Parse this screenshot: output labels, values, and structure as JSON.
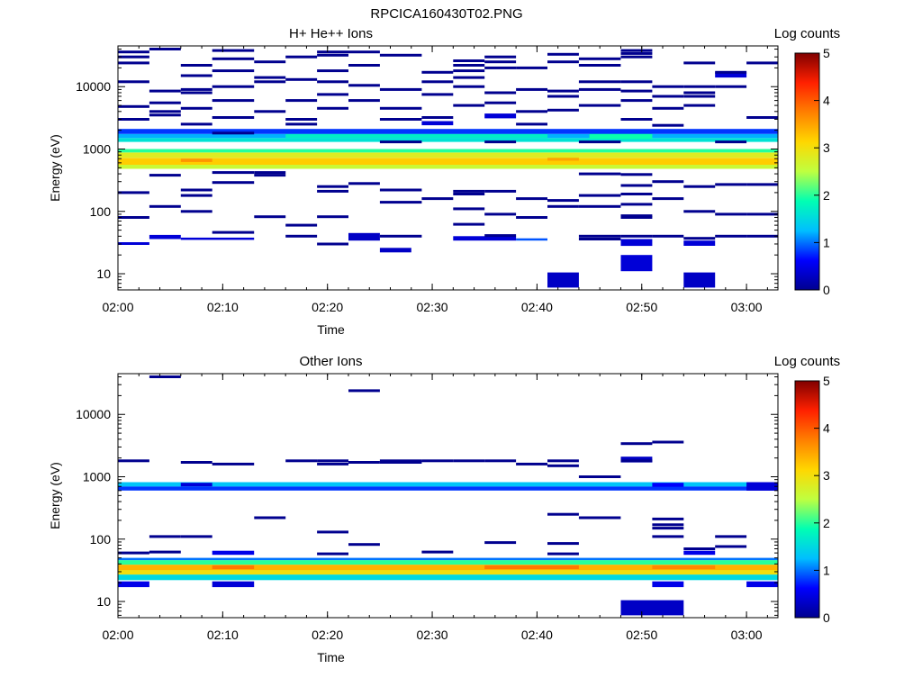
{
  "figure_title": "RPCICA160430T02.PNG",
  "colors": {
    "colormap": [
      "#00008f",
      "#0000ff",
      "#00bfff",
      "#00ffb3",
      "#bfff40",
      "#ffd700",
      "#ff8000",
      "#ff2000",
      "#800000"
    ],
    "axes": "#000000",
    "background": "#ffffff"
  },
  "chart_data": [
    {
      "type": "heatmap",
      "title": "H+ He++ Ions",
      "xlabel": "Time",
      "ylabel": "Energy (eV)",
      "colorbar_label": "Log counts",
      "x_range": [
        "02:00",
        "03:03"
      ],
      "x_ticks": [
        "02:00",
        "02:10",
        "02:20",
        "02:30",
        "02:40",
        "02:50",
        "03:00"
      ],
      "y_scale": "log",
      "y_range": [
        5.5,
        45000
      ],
      "y_ticks": [
        "10",
        "100",
        "1000",
        "10000"
      ],
      "colorbar_range": [
        0,
        5
      ],
      "colorbar_ticks": [
        "0",
        "1",
        "2",
        "3",
        "4",
        "5"
      ],
      "cells": [
        {
          "t0": "02:00",
          "t1": "03:03",
          "e0": 480,
          "e1": 560,
          "v": 2.6
        },
        {
          "t0": "02:00",
          "t1": "03:03",
          "e0": 560,
          "e1": 720,
          "v": 3.2
        },
        {
          "t0": "02:06",
          "t1": "02:09",
          "e0": 620,
          "e1": 700,
          "v": 3.6
        },
        {
          "t0": "02:41",
          "t1": "02:44",
          "e0": 650,
          "e1": 730,
          "v": 3.5
        },
        {
          "t0": "02:00",
          "t1": "03:03",
          "e0": 720,
          "e1": 880,
          "v": 2.8
        },
        {
          "t0": "02:00",
          "t1": "03:03",
          "e0": 880,
          "e1": 1000,
          "v": 2.0
        },
        {
          "t0": "02:00",
          "t1": "03:03",
          "e0": 1300,
          "e1": 1500,
          "v": 1.6
        },
        {
          "t0": "02:00",
          "t1": "03:03",
          "e0": 1500,
          "e1": 1750,
          "v": 1.2
        },
        {
          "t0": "02:16",
          "t1": "02:41",
          "e0": 1500,
          "e1": 1750,
          "v": 1.7
        },
        {
          "t0": "02:45",
          "t1": "02:51",
          "e0": 1450,
          "e1": 1800,
          "v": 1.9
        },
        {
          "t0": "02:00",
          "t1": "03:03",
          "e0": 1750,
          "e1": 2100,
          "v": 0.8
        },
        {
          "t0": "02:00",
          "t1": "02:03",
          "e0": 29,
          "e1": 32,
          "v": 0.4
        },
        {
          "t0": "02:03",
          "t1": "02:06",
          "e0": 36,
          "e1": 42,
          "v": 0.4
        },
        {
          "t0": "02:06",
          "t1": "02:13",
          "e0": 35,
          "e1": 38,
          "v": 0.4
        },
        {
          "t0": "02:22",
          "t1": "02:25",
          "e0": 34,
          "e1": 45,
          "v": 0.3
        },
        {
          "t0": "02:25",
          "t1": "02:28",
          "e0": 22,
          "e1": 26,
          "v": 0.3
        },
        {
          "t0": "02:32",
          "t1": "02:38",
          "e0": 34,
          "e1": 40,
          "v": 0.4
        },
        {
          "t0": "02:38",
          "t1": "02:41",
          "e0": 34,
          "e1": 37,
          "v": 0.9
        },
        {
          "t0": "02:48",
          "t1": "02:51",
          "e0": 28,
          "e1": 36,
          "v": 0.4
        },
        {
          "t0": "02:48",
          "t1": "02:51",
          "e0": 11,
          "e1": 20,
          "v": 0.4
        },
        {
          "t0": "02:54",
          "t1": "02:57",
          "e0": 28,
          "e1": 34,
          "v": 0.4
        },
        {
          "t0": "02:41",
          "t1": "02:44",
          "e0": 6,
          "e1": 10.5,
          "v": 0.3
        },
        {
          "t0": "02:54",
          "t1": "02:57",
          "e0": 6,
          "e1": 10.5,
          "v": 0.3
        },
        {
          "t0": "02:35",
          "t1": "02:38",
          "e0": 3100,
          "e1": 3700,
          "v": 0.4
        },
        {
          "t0": "02:29",
          "t1": "02:32",
          "e0": 2400,
          "e1": 2800,
          "v": 0.4
        },
        {
          "t0": "02:57",
          "t1": "03:00",
          "e0": 14000,
          "e1": 17000,
          "v": 0.4
        }
      ],
      "lines": [
        {
          "t0": "02:00",
          "t1": "02:03",
          "e": [
            36000,
            30000,
            24000,
            12000,
            4800,
            3000,
            200,
            80
          ]
        },
        {
          "t0": "02:03",
          "t1": "02:06",
          "e": [
            40000,
            8500,
            5500,
            4000,
            3500,
            380,
            120
          ]
        },
        {
          "t0": "02:06",
          "t1": "02:09",
          "e": [
            22000,
            15000,
            9000,
            8000,
            4500,
            2500,
            220,
            180,
            100
          ]
        },
        {
          "t0": "02:09",
          "t1": "02:13",
          "e": [
            38000,
            28000,
            18000,
            10000,
            6000,
            3200,
            1800,
            420,
            290,
            46
          ]
        },
        {
          "t0": "02:13",
          "t1": "02:16",
          "e": [
            25000,
            14000,
            12000,
            4000,
            420,
            380,
            82
          ]
        },
        {
          "t0": "02:16",
          "t1": "02:19",
          "e": [
            30000,
            13000,
            6000,
            3000,
            2500,
            60,
            40
          ]
        },
        {
          "t0": "02:19",
          "t1": "02:22",
          "e": [
            36000,
            32000,
            18000,
            12000,
            7500,
            4500,
            250,
            210,
            82,
            30
          ]
        },
        {
          "t0": "02:22",
          "t1": "02:25",
          "e": [
            36000,
            22000,
            10500,
            6000,
            280
          ]
        },
        {
          "t0": "02:25",
          "t1": "02:29",
          "e": [
            32000,
            9000,
            4500,
            3000,
            1300,
            220,
            140,
            40
          ]
        },
        {
          "t0": "02:29",
          "t1": "02:32",
          "e": [
            17000,
            12000,
            7500,
            3200,
            160
          ]
        },
        {
          "t0": "02:32",
          "t1": "02:35",
          "e": [
            26000,
            22000,
            18000,
            14000,
            10000,
            5000,
            210,
            190,
            110,
            62
          ]
        },
        {
          "t0": "02:35",
          "t1": "02:38",
          "e": [
            30000,
            25000,
            20000,
            8000,
            5500,
            1300,
            210,
            90,
            41
          ]
        },
        {
          "t0": "02:38",
          "t1": "02:41",
          "e": [
            20000,
            9000,
            4000,
            2500,
            160,
            80
          ]
        },
        {
          "t0": "02:41",
          "t1": "02:44",
          "e": [
            33000,
            25000,
            8500,
            7000,
            4200,
            150,
            120
          ]
        },
        {
          "t0": "02:44",
          "t1": "02:48",
          "e": [
            28000,
            22000,
            12000,
            9000,
            5000,
            1300,
            400,
            180,
            120,
            40,
            36
          ]
        },
        {
          "t0": "02:48",
          "t1": "02:51",
          "e": [
            38000,
            34000,
            30000,
            12000,
            8500,
            6000,
            3000,
            390,
            260,
            190,
            130,
            85,
            80,
            40
          ]
        },
        {
          "t0": "02:51",
          "t1": "02:54",
          "e": [
            10000,
            7000,
            4500,
            2400,
            300,
            160,
            40
          ]
        },
        {
          "t0": "02:54",
          "t1": "02:57",
          "e": [
            24000,
            10000,
            8000,
            7000,
            5000,
            250,
            100,
            37
          ]
        },
        {
          "t0": "02:57",
          "t1": "03:00",
          "e": [
            17000,
            10000,
            1300,
            270,
            90,
            40
          ]
        },
        {
          "t0": "03:00",
          "t1": "03:03",
          "e": [
            24000,
            3200,
            270,
            90,
            40
          ]
        }
      ]
    },
    {
      "type": "heatmap",
      "title": "Other Ions",
      "xlabel": "Time",
      "ylabel": "Energy (eV)",
      "colorbar_label": "Log counts",
      "x_range": [
        "02:00",
        "03:03"
      ],
      "x_ticks": [
        "02:00",
        "02:10",
        "02:20",
        "02:30",
        "02:40",
        "02:50",
        "03:00"
      ],
      "y_scale": "log",
      "y_range": [
        5.5,
        45000
      ],
      "y_ticks": [
        "10",
        "100",
        "1000",
        "10000"
      ],
      "colorbar_range": [
        0,
        5
      ],
      "colorbar_ticks": [
        "0",
        "1",
        "2",
        "3",
        "4",
        "5"
      ],
      "cells": [
        {
          "t0": "02:00",
          "t1": "03:03",
          "e0": 22,
          "e1": 27,
          "v": 1.5
        },
        {
          "t0": "02:00",
          "t1": "03:03",
          "e0": 27,
          "e1": 32,
          "v": 3.0
        },
        {
          "t0": "02:00",
          "t1": "03:03",
          "e0": 32,
          "e1": 39,
          "v": 3.4
        },
        {
          "t0": "02:00",
          "t1": "03:03",
          "e0": 39,
          "e1": 46,
          "v": 2.0
        },
        {
          "t0": "02:00",
          "t1": "03:03",
          "e0": 46,
          "e1": 50,
          "v": 1.0
        },
        {
          "t0": "02:09",
          "t1": "02:13",
          "e0": 33,
          "e1": 38,
          "v": 3.8
        },
        {
          "t0": "02:35",
          "t1": "02:44",
          "e0": 33,
          "e1": 38,
          "v": 3.8
        },
        {
          "t0": "02:51",
          "t1": "02:57",
          "e0": 33,
          "e1": 38,
          "v": 3.7
        },
        {
          "t0": "02:00",
          "t1": "02:03",
          "e0": 17,
          "e1": 21,
          "v": 0.5
        },
        {
          "t0": "02:09",
          "t1": "02:13",
          "e0": 17,
          "e1": 21,
          "v": 0.4
        },
        {
          "t0": "02:51",
          "t1": "02:54",
          "e0": 17,
          "e1": 21,
          "v": 0.5
        },
        {
          "t0": "03:00",
          "t1": "03:03",
          "e0": 17,
          "e1": 21,
          "v": 0.5
        },
        {
          "t0": "02:48",
          "t1": "02:54",
          "e0": 6,
          "e1": 10.5,
          "v": 0.3
        },
        {
          "t0": "02:00",
          "t1": "03:03",
          "e0": 600,
          "e1": 700,
          "v": 0.8
        },
        {
          "t0": "02:00",
          "t1": "03:03",
          "e0": 700,
          "e1": 820,
          "v": 1.3
        },
        {
          "t0": "02:06",
          "t1": "02:09",
          "e0": 700,
          "e1": 800,
          "v": 0.4
        },
        {
          "t0": "02:51",
          "t1": "02:54",
          "e0": 690,
          "e1": 800,
          "v": 0.6
        },
        {
          "t0": "03:00",
          "t1": "03:03",
          "e0": 600,
          "e1": 820,
          "v": 0.4
        },
        {
          "t0": "02:48",
          "t1": "02:51",
          "e0": 1700,
          "e1": 2100,
          "v": 0.3
        },
        {
          "t0": "02:09",
          "t1": "02:13",
          "e0": 56,
          "e1": 65,
          "v": 0.5
        },
        {
          "t0": "02:54",
          "t1": "02:57",
          "e0": 56,
          "e1": 65,
          "v": 0.5
        }
      ],
      "lines": [
        {
          "t0": "02:00",
          "t1": "02:03",
          "e": [
            1800,
            60
          ]
        },
        {
          "t0": "02:03",
          "t1": "02:06",
          "e": [
            40000,
            110,
            62
          ]
        },
        {
          "t0": "02:06",
          "t1": "02:09",
          "e": [
            1700,
            110
          ]
        },
        {
          "t0": "02:09",
          "t1": "02:13",
          "e": [
            1600
          ]
        },
        {
          "t0": "02:13",
          "t1": "02:16",
          "e": [
            220
          ]
        },
        {
          "t0": "02:16",
          "t1": "02:19",
          "e": [
            1800
          ]
        },
        {
          "t0": "02:19",
          "t1": "02:22",
          "e": [
            1800,
            1600,
            130,
            58
          ]
        },
        {
          "t0": "02:22",
          "t1": "02:25",
          "e": [
            24000,
            1700,
            82
          ]
        },
        {
          "t0": "02:25",
          "t1": "02:29",
          "e": [
            1800,
            1700
          ]
        },
        {
          "t0": "02:29",
          "t1": "02:32",
          "e": [
            1800,
            62
          ]
        },
        {
          "t0": "02:32",
          "t1": "02:35",
          "e": [
            1800
          ]
        },
        {
          "t0": "02:35",
          "t1": "02:38",
          "e": [
            1800,
            88
          ]
        },
        {
          "t0": "02:38",
          "t1": "02:41",
          "e": [
            1600
          ]
        },
        {
          "t0": "02:41",
          "t1": "02:44",
          "e": [
            1800,
            1500,
            250,
            85,
            58
          ]
        },
        {
          "t0": "02:44",
          "t1": "02:48",
          "e": [
            1000,
            220
          ]
        },
        {
          "t0": "02:48",
          "t1": "02:51",
          "e": [
            3400,
            1800
          ]
        },
        {
          "t0": "02:51",
          "t1": "02:54",
          "e": [
            3600,
            210,
            170,
            150,
            110
          ]
        },
        {
          "t0": "02:54",
          "t1": "02:57",
          "e": [
            70
          ]
        },
        {
          "t0": "02:57",
          "t1": "03:00",
          "e": [
            110,
            76
          ]
        }
      ]
    }
  ]
}
